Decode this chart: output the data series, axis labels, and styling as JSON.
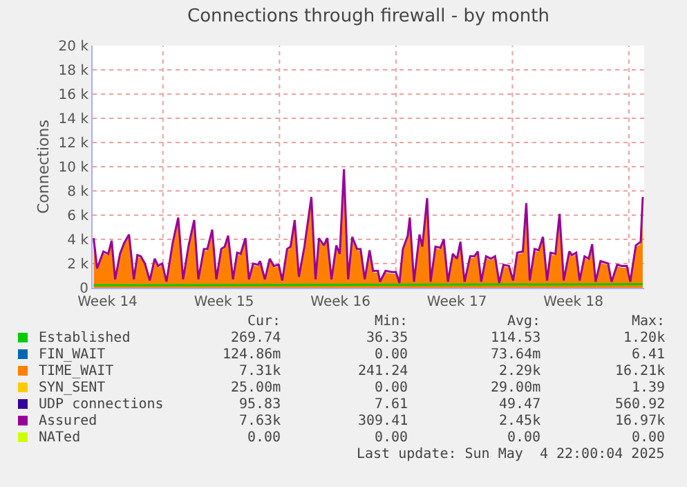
{
  "chart_data": {
    "type": "area",
    "title": "Connections through firewall - by month",
    "ylabel": "Connections",
    "x": [
      "2025-04-01T20:00",
      "2025-04-02T01:00",
      "2025-04-02T10:00",
      "2025-04-02T17:00",
      "2025-04-02T22:00",
      "2025-04-03T03:00",
      "2025-04-03T10:00",
      "2025-04-03T16:00",
      "2025-04-03T23:00",
      "2025-04-04T06:00",
      "2025-04-04T11:00",
      "2025-04-04T16:00",
      "2025-04-04T22:00",
      "2025-04-05T05:00",
      "2025-04-05T12:00",
      "2025-04-05T17:00",
      "2025-04-05T23:00",
      "2025-04-06T05:00",
      "2025-04-06T14:00",
      "2025-04-06T22:00",
      "2025-04-07T05:00",
      "2025-04-07T13:00",
      "2025-04-07T21:00",
      "2025-04-08T03:00",
      "2025-04-08T11:00",
      "2025-04-08T16:00",
      "2025-04-08T23:00",
      "2025-04-09T05:00",
      "2025-04-09T12:00",
      "2025-04-09T17:00",
      "2025-04-09T22:00",
      "2025-04-10T05:00",
      "2025-04-10T11:00",
      "2025-04-10T16:00",
      "2025-04-10T23:00",
      "2025-04-11T04:00",
      "2025-04-11T10:00",
      "2025-04-11T17:00",
      "2025-04-11T20:00",
      "2025-04-12T03:00",
      "2025-04-12T10:00",
      "2025-04-12T16:00",
      "2025-04-12T23:00",
      "2025-04-13T04:00",
      "2025-04-13T11:00",
      "2025-04-13T16:00",
      "2025-04-13T22:00",
      "2025-04-14T04:00",
      "2025-04-14T12:00",
      "2025-04-14T22:00",
      "2025-04-15T04:00",
      "2025-04-15T09:00",
      "2025-04-15T16:00",
      "2025-04-15T21:00",
      "2025-04-16T03:00",
      "2025-04-16T10:00",
      "2025-04-16T15:00",
      "2025-04-16T21:00",
      "2025-04-17T03:00",
      "2025-04-17T09:00",
      "2025-04-17T16:00",
      "2025-04-17T21:00",
      "2025-04-18T03:00",
      "2025-04-18T10:00",
      "2025-04-18T15:00",
      "2025-04-18T22:00",
      "2025-04-19T01:00",
      "2025-04-19T09:00",
      "2025-04-19T18:00",
      "2025-04-20T00:00",
      "2025-04-20T05:00",
      "2025-04-20T10:00",
      "2025-04-20T17:00",
      "2025-04-20T20:00",
      "2025-04-21T02:00",
      "2025-04-21T10:00",
      "2025-04-21T14:00",
      "2025-04-21T21:00",
      "2025-04-22T02:00",
      "2025-04-22T09:00",
      "2025-04-22T16:00",
      "2025-04-22T21:00",
      "2025-04-23T03:00",
      "2025-04-23T10:00",
      "2025-04-23T16:00",
      "2025-04-23T21:00",
      "2025-04-24T03:00",
      "2025-04-24T11:00",
      "2025-04-24T17:00",
      "2025-04-24T22:00",
      "2025-04-25T03:00",
      "2025-04-25T10:00",
      "2025-04-25T17:00",
      "2025-04-25T23:00",
      "2025-04-26T05:00",
      "2025-04-26T11:00",
      "2025-04-26T19:00",
      "2025-04-27T01:00",
      "2025-04-27T07:00",
      "2025-04-27T15:00",
      "2025-04-27T20:00",
      "2025-04-28T01:00",
      "2025-04-28T08:00",
      "2025-04-28T14:00",
      "2025-04-28T20:00",
      "2025-04-29T02:00",
      "2025-04-29T07:00",
      "2025-04-29T14:00",
      "2025-04-29T20:00",
      "2025-04-30T02:00",
      "2025-04-30T10:00",
      "2025-04-30T14:00",
      "2025-04-30T20:00",
      "2025-05-01T01:00",
      "2025-05-01T08:00",
      "2025-05-01T14:00",
      "2025-05-01T19:00",
      "2025-05-02T00:00",
      "2025-05-02T07:00",
      "2025-05-02T13:00",
      "2025-05-02T18:00",
      "2025-05-02T23:00",
      "2025-05-03T07:00",
      "2025-05-03T14:00",
      "2025-05-03T21:00",
      "2025-05-04T02:00",
      "2025-05-04T10:00",
      "2025-05-04T17:00",
      "2025-05-04T20:00"
    ],
    "series": [
      {
        "name": "Established",
        "color": "#00cc00",
        "type": "line",
        "x": [
          "2025-04-01T20:00",
          "2025-05-04T20:00"
        ],
        "values": [
          200,
          300
        ]
      },
      {
        "name": "FIN_WAIT",
        "color": "#0066b3",
        "type": "line",
        "values": [
          null,
          null,
          null,
          null,
          null,
          null,
          null,
          null,
          null,
          null,
          null,
          null,
          null,
          null,
          null,
          null,
          null,
          null,
          null,
          null,
          null,
          null,
          null,
          null,
          null,
          null,
          null,
          null,
          null,
          null,
          null,
          null,
          null,
          null,
          null,
          null,
          null,
          null,
          null,
          null,
          null,
          null,
          null,
          null,
          null,
          null,
          null,
          null,
          null,
          null,
          null,
          null,
          null,
          null,
          null,
          null,
          null,
          null,
          null,
          null,
          null,
          null,
          null,
          null,
          null,
          null,
          null,
          null,
          null,
          null,
          null,
          null,
          null,
          null,
          null,
          null,
          null,
          null,
          null,
          null,
          null,
          null,
          null,
          null,
          null,
          null,
          null,
          null,
          null,
          null,
          null,
          null,
          null,
          null,
          null,
          null,
          null,
          null,
          null,
          null,
          null,
          null,
          null,
          null,
          null,
          null,
          null,
          null,
          null,
          null,
          null,
          null,
          null,
          null,
          null,
          null,
          null,
          null,
          null,
          null,
          null,
          null,
          null,
          null,
          null,
          null,
          null,
          null,
          null
        ]
      },
      {
        "name": "TIME_WAIT",
        "color": "#ff8000",
        "values": [
          3800,
          1400,
          2800,
          2600,
          3600,
          500,
          2600,
          3500,
          4100,
          500,
          2500,
          2400,
          1800,
          400,
          2200,
          1600,
          1800,
          300,
          3500,
          5500,
          500,
          3300,
          5300,
          500,
          3000,
          3000,
          4500,
          500,
          3000,
          3200,
          4000,
          500,
          2700,
          2600,
          3800,
          500,
          1800,
          1700,
          2000,
          500,
          2200,
          1600,
          1700,
          400,
          3000,
          3200,
          5300,
          700,
          3200,
          7200,
          500,
          3800,
          3300,
          3800,
          500,
          3300,
          2600,
          9500,
          500,
          3900,
          3000,
          3000,
          500,
          2900,
          1200,
          1200,
          300,
          1200,
          1100,
          1100,
          200,
          3000,
          4000,
          5500,
          300,
          4100,
          3200,
          7100,
          300,
          3200,
          3100,
          3700,
          300,
          2600,
          2200,
          3500,
          300,
          2400,
          2400,
          2800,
          300,
          2400,
          2200,
          2400,
          200,
          1700,
          1600,
          400,
          2700,
          2800,
          6700,
          400,
          3000,
          2900,
          3900,
          400,
          2700,
          2600,
          5800,
          400,
          2800,
          2500,
          2700,
          400,
          2400,
          2200,
          3400,
          300,
          2000,
          1900,
          1800,
          300,
          1700,
          1600,
          1600,
          300,
          3300,
          3500,
          7200
        ]
      },
      {
        "name": "SYN_SENT",
        "color": "#ffcc00",
        "type": "line",
        "values": [
          null,
          null,
          null,
          null,
          null,
          null,
          null,
          null,
          null,
          null,
          null,
          null,
          null,
          null,
          null,
          null,
          null,
          null,
          null,
          null,
          null,
          null,
          null,
          null,
          null,
          null,
          null,
          null,
          null,
          null,
          null,
          null,
          null,
          null,
          null,
          null,
          null,
          null,
          null,
          null,
          null,
          null,
          null,
          null,
          null,
          null,
          null,
          null,
          null,
          null,
          null,
          null,
          null,
          null,
          null,
          null,
          null,
          null,
          null,
          null,
          null,
          null,
          null,
          null,
          null,
          null,
          null,
          null,
          null,
          null,
          null,
          null,
          null,
          null,
          null,
          null,
          null,
          null,
          null,
          null,
          null,
          null,
          null,
          null,
          null,
          null,
          null,
          null,
          null,
          null,
          null,
          null,
          null,
          null,
          null,
          null,
          null,
          null,
          null,
          null,
          null,
          null,
          null,
          null,
          null,
          null,
          null,
          null,
          null,
          null,
          null,
          null,
          null,
          null,
          null,
          null,
          null,
          null,
          null,
          null,
          null,
          null,
          null,
          null,
          null,
          null,
          null,
          null,
          null
        ]
      },
      {
        "name": "UDP connections",
        "color": "#330099",
        "type": "line",
        "values": [
          null,
          null,
          null,
          null,
          null,
          null,
          null,
          null,
          null,
          null,
          null,
          null,
          null,
          null,
          null,
          null,
          null,
          null,
          null,
          null,
          null,
          null,
          null,
          null,
          null,
          null,
          null,
          null,
          null,
          null,
          null,
          null,
          null,
          null,
          null,
          null,
          null,
          null,
          null,
          null,
          null,
          null,
          null,
          null,
          null,
          null,
          null,
          null,
          null,
          null,
          null,
          null,
          null,
          null,
          null,
          null,
          null,
          null,
          null,
          null,
          null,
          null,
          null,
          null,
          null,
          null,
          null,
          null,
          null,
          null,
          null,
          null,
          null,
          null,
          null,
          null,
          null,
          null,
          null,
          null,
          null,
          null,
          null,
          null,
          null,
          null,
          null,
          null,
          null,
          null,
          null,
          null,
          null,
          null,
          null,
          null,
          null,
          null,
          null,
          null,
          null,
          null,
          null,
          null,
          null,
          null,
          null,
          null,
          null,
          null,
          null,
          null,
          null,
          null,
          null,
          null,
          null,
          null,
          null,
          null,
          null,
          null,
          null,
          null,
          null,
          null,
          null,
          null,
          null
        ]
      },
      {
        "name": "Assured",
        "color": "#990099",
        "type": "line",
        "values": [
          4100,
          1600,
          3000,
          2800,
          3900,
          700,
          2800,
          3700,
          4400,
          700,
          2700,
          2600,
          2000,
          600,
          2400,
          1800,
          2000,
          500,
          3700,
          5800,
          700,
          3500,
          5600,
          700,
          3200,
          3200,
          4800,
          700,
          3200,
          3400,
          4300,
          700,
          2900,
          2800,
          4100,
          700,
          2000,
          1900,
          2200,
          700,
          2400,
          1800,
          1900,
          600,
          3200,
          3400,
          5600,
          900,
          3400,
          7500,
          700,
          4100,
          3500,
          4100,
          700,
          3500,
          2800,
          9800,
          700,
          4200,
          3200,
          3200,
          700,
          3100,
          1400,
          1400,
          500,
          1400,
          1300,
          1300,
          400,
          3200,
          4300,
          5800,
          500,
          4400,
          3400,
          7400,
          500,
          3400,
          3300,
          4000,
          500,
          2800,
          2400,
          3800,
          500,
          2600,
          2600,
          3000,
          500,
          2600,
          2400,
          2600,
          400,
          1900,
          1800,
          600,
          2900,
          3000,
          7000,
          600,
          3200,
          3100,
          4200,
          600,
          2900,
          2800,
          6100,
          600,
          3000,
          2700,
          2900,
          600,
          2600,
          2400,
          3600,
          500,
          2200,
          2100,
          2000,
          500,
          1900,
          1800,
          1800,
          500,
          3500,
          3800,
          7500
        ]
      },
      {
        "name": "NATed",
        "color": "#ccff00",
        "type": "line",
        "values": [
          null,
          null,
          null,
          null,
          null,
          null,
          null,
          null,
          null,
          null,
          null,
          null,
          null,
          null,
          null,
          null,
          null,
          null,
          null,
          null,
          null,
          null,
          null,
          null,
          null,
          null,
          null,
          null,
          null,
          null,
          null,
          null,
          null,
          null,
          null,
          null,
          null,
          null,
          null,
          null,
          null,
          null,
          null,
          null,
          null,
          null,
          null,
          null,
          null,
          null,
          null,
          null,
          null,
          null,
          null,
          null,
          null,
          null,
          null,
          null,
          null,
          null,
          null,
          null,
          null,
          null,
          null,
          null,
          null,
          null,
          null,
          null,
          null,
          null,
          null,
          null,
          null,
          null,
          null,
          null,
          null,
          null,
          null,
          null,
          null,
          null,
          null,
          null,
          null,
          null,
          null,
          null,
          null,
          null,
          null,
          null,
          null,
          null,
          null,
          null,
          null,
          null,
          null,
          null,
          null,
          null,
          null,
          null,
          null,
          null,
          null,
          null,
          null,
          null,
          null,
          null,
          null,
          null,
          null,
          null,
          null,
          null,
          null,
          null,
          null,
          null,
          null,
          null,
          null
        ]
      }
    ],
    "xlim": [
      "2025-04-01T18:30",
      "2025-05-04T22:00"
    ],
    "xticks": [
      {
        "value": "2025-04-02T16:00",
        "label": "Week 14"
      },
      {
        "value": "2025-04-09T16:00",
        "label": "Week 15"
      },
      {
        "value": "2025-04-16T16:00",
        "label": "Week 16"
      },
      {
        "value": "2025-04-23T16:00",
        "label": "Week 17"
      },
      {
        "value": "2025-04-30T16:00",
        "label": "Week 18"
      },
      {
        "value": "2025-04-06T00:00",
        "label": null
      },
      {
        "value": "2025-04-13T00:00",
        "label": null
      },
      {
        "value": "2025-04-20T00:00",
        "label": null
      },
      {
        "value": "2025-04-27T00:00",
        "label": null
      },
      {
        "value": "2025-05-04T00:00",
        "label": null
      }
    ],
    "ylim": [
      0,
      20000
    ],
    "yticks": [
      0,
      {
        "value": 2000,
        "label": "2 k"
      },
      {
        "value": 4000,
        "label": "4 k"
      },
      {
        "value": 6000,
        "label": "6 k"
      },
      {
        "value": 8000,
        "label": "8 k"
      },
      {
        "value": 10000,
        "label": "10 k"
      },
      {
        "value": 12000,
        "label": "12 k"
      },
      {
        "value": 14000,
        "label": "14 k"
      },
      {
        "value": 16000,
        "label": "16 k"
      },
      {
        "value": 18000,
        "label": "18 k"
      },
      {
        "value": 20000,
        "label": "20 k"
      }
    ],
    "grid": true,
    "legend": "bottom",
    "annotations": [
      "Cur:",
      "Min:",
      "Avg:",
      "Max:",
      "269.74",
      "36.35",
      "114.53",
      "1.20k",
      "124.86m",
      "0.00",
      "73.64m",
      "6.41",
      "7.31k",
      "241.24",
      "2.29k",
      "16.21k",
      "25.00m",
      "0.00",
      "29.00m",
      "1.39",
      "95.83",
      "7.61",
      "49.47",
      "560.92",
      "7.63k",
      "309.41",
      "2.45k",
      "16.97k",
      "0.00",
      "0.00",
      "0.00",
      "0.00",
      "Last update: Sun May  4 22:00:04 2025"
    ]
  }
}
